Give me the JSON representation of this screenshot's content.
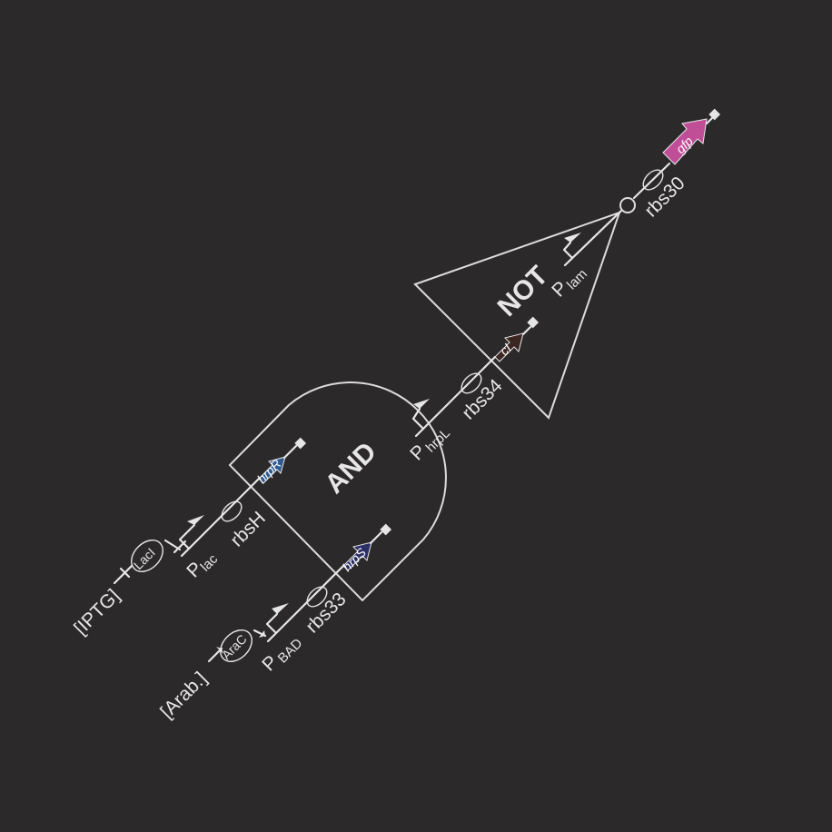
{
  "gates": {
    "and_label": "AND",
    "not_label": "NOT"
  },
  "inputs": {
    "iptg": {
      "label": "[IPTG]",
      "protein": "LacI"
    },
    "arab": {
      "label": "[Arab.]",
      "protein": "AraC"
    }
  },
  "parts": {
    "p_lac": {
      "main": "P",
      "sub": "lac"
    },
    "rbs_h": "rbsH",
    "hrpR": "hrpR",
    "p_bad": {
      "main": "P",
      "sub": "BAD"
    },
    "rbs_33": "rbs33",
    "hrpS": "hrpS",
    "p_hrpl": {
      "main": "P",
      "sub": "hrpL"
    },
    "rbs_34": "rbs34",
    "ci": "cI",
    "p_lam": {
      "main": "P",
      "sub": "lam"
    },
    "rbs_30": "rbs30",
    "gfp": "gfp"
  },
  "colors": {
    "background": "#2c292a",
    "hrpR": "#2f5b92",
    "hrpS": "#2b2f66",
    "ci": "#3b2622",
    "gfp": "#bf4e97",
    "line": "#e6e6e6"
  }
}
